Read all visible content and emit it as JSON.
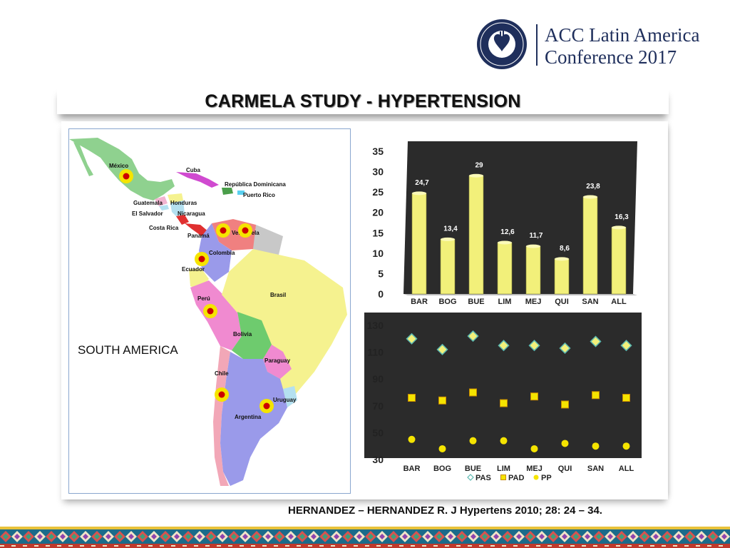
{
  "header": {
    "logo_line1": "ACC Latin America",
    "logo_line2": "Conference 2017",
    "seal_text": "AMERICAN COLLEGE OF CARDIOLOGY"
  },
  "slide": {
    "title": "CARMELA STUDY - HYPERTENSION",
    "citation": "HERNANDEZ – HERNANDEZ R. J Hypertens 2010; 28: 24 – 34."
  },
  "map": {
    "region_label": "SOUTH AMERICA",
    "country_labels": [
      "México",
      "Cuba",
      "República Dominicana",
      "Puerto Rico",
      "Honduras",
      "Guatemala",
      "El Salvador",
      "Nicaragua",
      "Costa Rica",
      "Panamá",
      "Venezuela",
      "Colombia",
      "Ecuador",
      "Perú",
      "Brasil",
      "Bolivia",
      "Paraguay",
      "Chile",
      "Uruguay",
      "Argentina"
    ],
    "marker_color": "#cc0000",
    "marker_ring_color": "#f5e400"
  },
  "chart_data": [
    {
      "type": "bar",
      "categories": [
        "BAR",
        "BOG",
        "BUE",
        "LIM",
        "MEJ",
        "QUI",
        "SAN",
        "ALL"
      ],
      "values": [
        24.7,
        13.4,
        29,
        12.6,
        11.7,
        8.6,
        23.8,
        16.3
      ],
      "data_labels": [
        "24,7",
        "13,4",
        "29",
        "12,6",
        "11,7",
        "8,6",
        "23,8",
        "16,3"
      ],
      "ylim": [
        0,
        35
      ],
      "yticks": [
        0,
        5,
        10,
        15,
        20,
        25,
        30,
        35
      ],
      "bar_color": "#f2f07a",
      "background": "#2b2b2b"
    },
    {
      "type": "scatter",
      "categories": [
        "BAR",
        "BOG",
        "BUE",
        "LIM",
        "MEJ",
        "QUI",
        "SAN",
        "ALL"
      ],
      "ylim": [
        30,
        130
      ],
      "yticks": [
        30,
        50,
        70,
        90,
        110,
        130
      ],
      "background": "#2b2b2b",
      "series": [
        {
          "name": "PAS",
          "marker": "diamond",
          "color": "#f2f07a",
          "edge": "#5bb8b0",
          "values": [
            120,
            112,
            122,
            115,
            115,
            113,
            118,
            115
          ]
        },
        {
          "name": "PAD",
          "marker": "square",
          "color": "#f5e400",
          "edge": "#c98a00",
          "values": [
            76,
            74,
            80,
            72,
            77,
            71,
            78,
            76
          ]
        },
        {
          "name": "PP",
          "marker": "circle",
          "color": "#f5e400",
          "edge": "#f5e400",
          "values": [
            45,
            38,
            44,
            44,
            38,
            42,
            40,
            40
          ]
        }
      ]
    }
  ]
}
